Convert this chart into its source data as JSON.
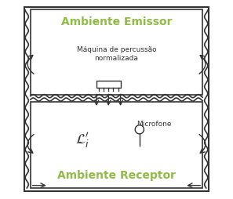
{
  "bg_color": "#ffffff",
  "border_color": "#333333",
  "text_color_green": "#8fbc45",
  "text_color_dark": "#333333",
  "emissor_label": "Ambiente Emissor",
  "receptor_label": "Ambiente Receptor",
  "machine_label": "Máquina de percussão\nnormalizada",
  "microfone_label": "Microfone",
  "li_label": "$\\mathcal{L}_i^{\\prime}$"
}
